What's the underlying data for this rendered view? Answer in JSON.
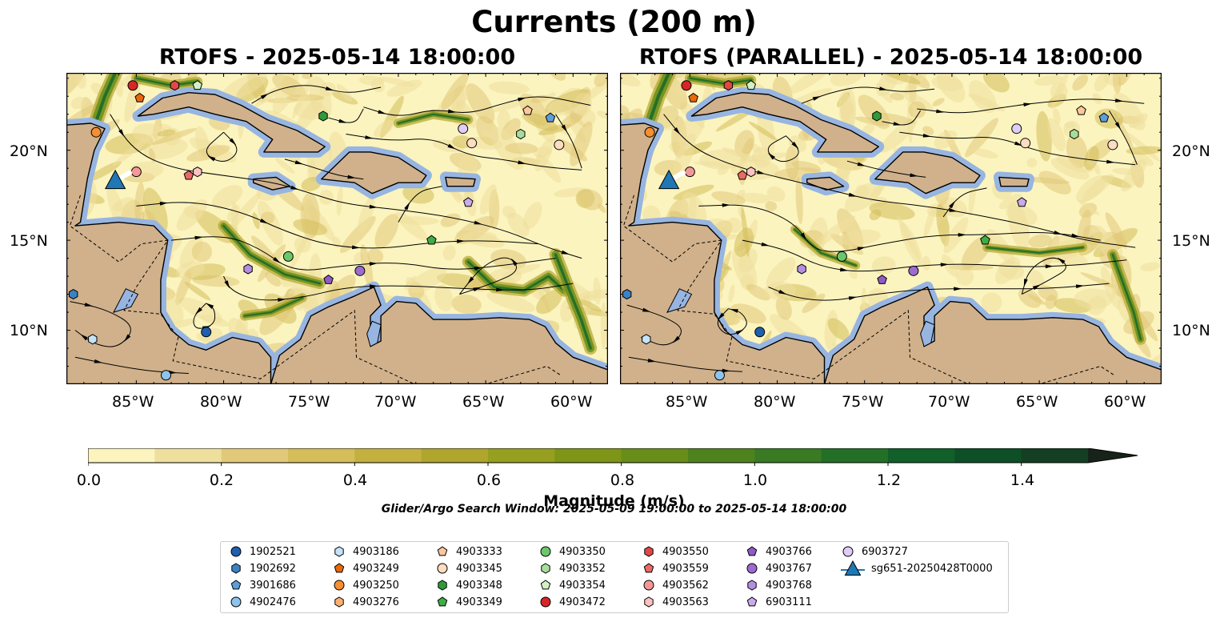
{
  "figure_title": "Currents (200 m)",
  "panels": [
    {
      "title": "RTOFS - 2025-05-14 18:00:00"
    },
    {
      "title": "RTOFS (PARALLEL) - 2025-05-14 18:00:00"
    }
  ],
  "axes": {
    "lon_ticks": [
      "85°W",
      "80°W",
      "75°W",
      "70°W",
      "65°W",
      "60°W"
    ],
    "lat_ticks": [
      "20°N",
      "15°N",
      "10°N"
    ]
  },
  "colorbar": {
    "label": "Magnitude (m/s)",
    "ticks": [
      "0.0",
      "0.2",
      "0.4",
      "0.6",
      "0.8",
      "1.0",
      "1.2",
      "1.4"
    ],
    "range": [
      0.0,
      1.5
    ],
    "extend": "max",
    "colors": [
      "#fbf4bf",
      "#eedf9d",
      "#e2c97a",
      "#d4bd5a",
      "#c4b03f",
      "#b0a52d",
      "#969f1f",
      "#7e9517",
      "#688d19",
      "#4f821d",
      "#397a23",
      "#236f28",
      "#115f29",
      "#0d4f26",
      "#143f22",
      "#19301c",
      "#172319"
    ]
  },
  "search_window": "Glider/Argo Search Window: 2025-05-09 19:00:00 to 2025-05-14 18:00:00",
  "land_color": "#d0b18b",
  "water_color": "#97b5e0",
  "legend": [
    {
      "id": "1902521",
      "marker": "circle",
      "color": "#1f5fae"
    },
    {
      "id": "1902692",
      "marker": "hexagon",
      "color": "#3b82c4"
    },
    {
      "id": "3901686",
      "marker": "pentagon",
      "color": "#5c9ed8"
    },
    {
      "id": "4902476",
      "marker": "circle",
      "color": "#8cc4ec"
    },
    {
      "id": "4903186",
      "marker": "hexagon",
      "color": "#c4e3f7"
    },
    {
      "id": "4903249",
      "marker": "pentagon",
      "color": "#e8680c"
    },
    {
      "id": "4903250",
      "marker": "circle",
      "color": "#f78e30"
    },
    {
      "id": "4903276",
      "marker": "hexagon",
      "color": "#fbb072"
    },
    {
      "id": "4903333",
      "marker": "pentagon",
      "color": "#fcc79d"
    },
    {
      "id": "4903345",
      "marker": "circle",
      "color": "#fddcc0"
    },
    {
      "id": "4903348",
      "marker": "hexagon",
      "color": "#2e9a3a"
    },
    {
      "id": "4903349",
      "marker": "pentagon",
      "color": "#3fad45"
    },
    {
      "id": "4903350",
      "marker": "circle",
      "color": "#6cc76a"
    },
    {
      "id": "4903352",
      "marker": "hexagon",
      "color": "#a7dd9a"
    },
    {
      "id": "4903354",
      "marker": "pentagon",
      "color": "#d2f0c4"
    },
    {
      "id": "4903472",
      "marker": "circle",
      "color": "#d62728"
    },
    {
      "id": "4903550",
      "marker": "hexagon",
      "color": "#e04848"
    },
    {
      "id": "4903559",
      "marker": "pentagon",
      "color": "#ec6868"
    },
    {
      "id": "4903562",
      "marker": "circle",
      "color": "#f39898"
    },
    {
      "id": "4903563",
      "marker": "hexagon",
      "color": "#fbc2c2"
    },
    {
      "id": "4903766",
      "marker": "pentagon",
      "color": "#8d5cc4"
    },
    {
      "id": "4903767",
      "marker": "circle",
      "color": "#9c6bd0"
    },
    {
      "id": "4903768",
      "marker": "hexagon",
      "color": "#b58ee0"
    },
    {
      "id": "6903111",
      "marker": "pentagon",
      "color": "#c9aaeb"
    },
    {
      "id": "6903727",
      "marker": "circle",
      "color": "#e0cdf5"
    },
    {
      "id": "sg651-20250428T0000",
      "marker": "triangle",
      "color": "#1f77b4"
    }
  ],
  "glider": {
    "id": "sg651-20250428T0000",
    "lon": -86.2,
    "lat": 18.3
  },
  "floats": [
    {
      "id": "4903472",
      "lon": -85.2,
      "lat": 23.6
    },
    {
      "id": "4903550",
      "lon": -82.8,
      "lat": 23.6
    },
    {
      "id": "4903354",
      "lon": -81.5,
      "lat": 23.6
    },
    {
      "id": "4903249",
      "lon": -84.8,
      "lat": 22.9
    },
    {
      "id": "4903348",
      "lon": -74.3,
      "lat": 21.9
    },
    {
      "id": "4903250",
      "lon": -87.3,
      "lat": 21.0
    },
    {
      "id": "4903562",
      "lon": -85.0,
      "lat": 18.8
    },
    {
      "id": "4903559",
      "lon": -82.0,
      "lat": 18.6
    },
    {
      "id": "4903563",
      "lon": -81.5,
      "lat": 18.8
    },
    {
      "id": "6903727",
      "lon": -66.3,
      "lat": 21.2
    },
    {
      "id": "4903345",
      "lon": -65.8,
      "lat": 20.4
    },
    {
      "id": "4903352",
      "lon": -63.0,
      "lat": 20.9
    },
    {
      "id": "4903333",
      "lon": -62.6,
      "lat": 22.2
    },
    {
      "id": "3901686",
      "lon": -61.3,
      "lat": 21.8
    },
    {
      "id": "4903345",
      "lon": -60.8,
      "lat": 20.3
    },
    {
      "id": "6903111",
      "lon": -66.0,
      "lat": 17.1
    },
    {
      "id": "4903349",
      "lon": -68.1,
      "lat": 15.0
    },
    {
      "id": "4903350",
      "lon": -76.3,
      "lat": 14.1
    },
    {
      "id": "4903768",
      "lon": -78.6,
      "lat": 13.4
    },
    {
      "id": "4903766",
      "lon": -74.0,
      "lat": 12.8
    },
    {
      "id": "4903767",
      "lon": -72.2,
      "lat": 13.3
    },
    {
      "id": "1902692",
      "lon": -88.6,
      "lat": 12.0
    },
    {
      "id": "1902521",
      "lon": -81.0,
      "lat": 9.9
    },
    {
      "id": "4903186",
      "lon": -87.5,
      "lat": 9.5
    },
    {
      "id": "4902476",
      "lon": -83.3,
      "lat": 7.5
    }
  ]
}
